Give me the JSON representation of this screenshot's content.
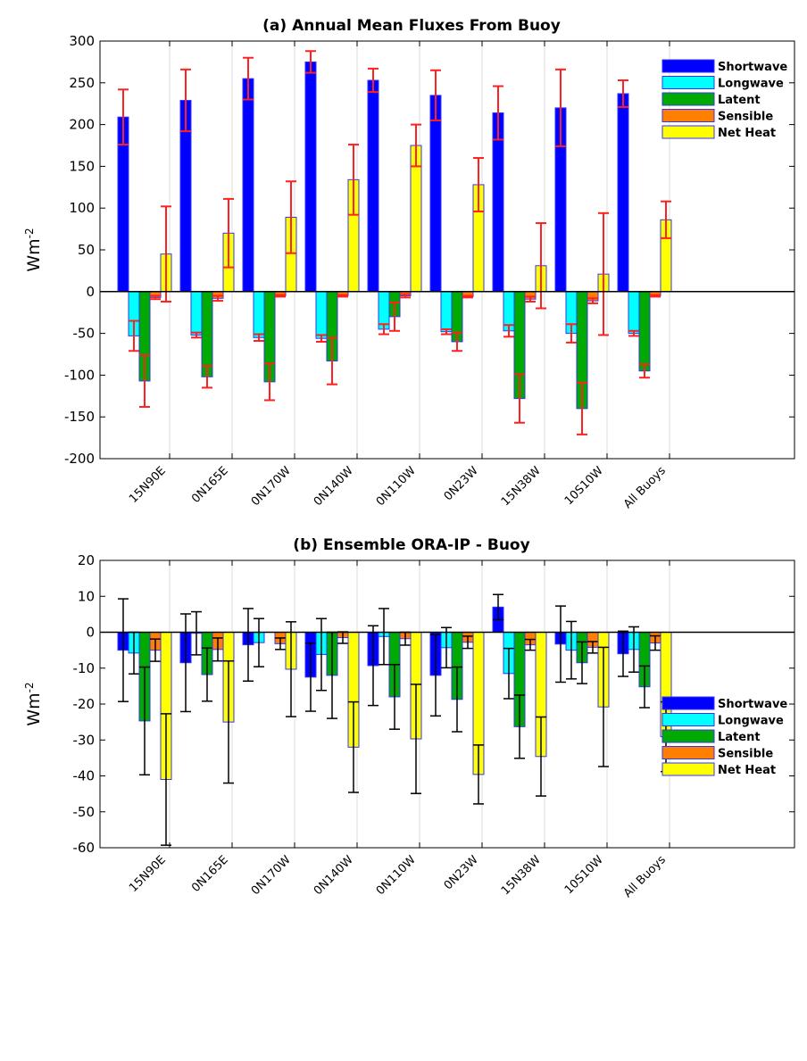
{
  "chart_data": [
    {
      "type": "bar",
      "title": "(a) Annual Mean Fluxes From Buoy",
      "ylabel": "Wm",
      "ylabel_superscript": "-2",
      "ylim": [
        -200,
        300
      ],
      "yticks": [
        -200,
        -150,
        -100,
        -50,
        0,
        50,
        100,
        150,
        200,
        250,
        300
      ],
      "grid": "vertical",
      "legend_position": "top-right",
      "error_bar_color": "#ff2020",
      "categories": [
        "15N90E",
        "0N165E",
        "0N170W",
        "0N140W",
        "0N110W",
        "0N23W",
        "15N38W",
        "10S10W",
        "All Buoys"
      ],
      "series": [
        {
          "name": "Shortwave",
          "color": "#0000ff",
          "values": [
            209,
            229,
            255,
            275,
            253,
            235,
            214,
            220,
            237
          ],
          "errors": [
            33,
            37,
            25,
            13,
            14,
            30,
            32,
            46,
            16
          ]
        },
        {
          "name": "Longwave",
          "color": "#00ffff",
          "values": [
            -53,
            -52,
            -55,
            -56,
            -45,
            -48,
            -47,
            -50,
            -50
          ],
          "errors": [
            18,
            3,
            4,
            4,
            6,
            3,
            7,
            11,
            3
          ]
        },
        {
          "name": "Latent",
          "color": "#00aa00",
          "values": [
            -107,
            -102,
            -108,
            -83,
            -30,
            -60,
            -128,
            -140,
            -95
          ],
          "errors": [
            31,
            13,
            22,
            28,
            17,
            11,
            29,
            31,
            8
          ]
        },
        {
          "name": "Sensible",
          "color": "#ff7f00",
          "values": [
            -7,
            -8,
            -5,
            -5,
            -5,
            -6,
            -9,
            -11,
            -5
          ],
          "errors": [
            2,
            3,
            1,
            1,
            2,
            1,
            3,
            3,
            1
          ]
        },
        {
          "name": "Net Heat",
          "color": "#ffff00",
          "values": [
            45,
            70,
            89,
            134,
            175,
            128,
            31,
            21,
            86
          ],
          "errors": [
            57,
            41,
            43,
            42,
            25,
            32,
            51,
            73,
            22
          ]
        }
      ]
    },
    {
      "type": "bar",
      "title": "(b) Ensemble ORA-IP - Buoy",
      "ylabel": "Wm",
      "ylabel_superscript": "-2",
      "ylim": [
        -60,
        20
      ],
      "yticks": [
        -60,
        -50,
        -40,
        -30,
        -20,
        -10,
        0,
        10,
        20
      ],
      "grid": "vertical",
      "legend_position": "bottom-right",
      "error_bar_color": "#000000",
      "categories": [
        "15N90E",
        "0N165E",
        "0N170W",
        "0N140W",
        "0N110W",
        "0N23W",
        "15N38W",
        "10S10W",
        "All Buoys"
      ],
      "series": [
        {
          "name": "Shortwave",
          "color": "#0000ff",
          "values": [
            -5,
            -8.5,
            -3.5,
            -12.5,
            -9.3,
            -12,
            7,
            -3.3,
            -6
          ],
          "errors": [
            14.3,
            13.6,
            10.1,
            9.5,
            11.1,
            11.3,
            3.5,
            10.6,
            6.3
          ]
        },
        {
          "name": "Longwave",
          "color": "#00ffff",
          "values": [
            -5.8,
            -0.3,
            -2.9,
            -6.2,
            -1.2,
            -4.3,
            -11.5,
            -5,
            -4.8
          ],
          "errors": [
            5.8,
            6,
            6.7,
            10,
            7.8,
            5.6,
            7,
            8,
            6.3
          ]
        },
        {
          "name": "Latent",
          "color": "#00aa00",
          "values": [
            -24.7,
            -11.8,
            0,
            -12,
            -18,
            -18.7,
            -26.3,
            -8.5,
            -15.2
          ],
          "errors": [
            15,
            7.4,
            0,
            12,
            9,
            9,
            8.8,
            5.8,
            5.8
          ]
        },
        {
          "name": "Sensible",
          "color": "#ff7f00",
          "values": [
            -5,
            -4.8,
            -3.2,
            -1.5,
            -1.8,
            -2.8,
            -3.5,
            -4.2,
            -3
          ],
          "errors": [
            3.1,
            3.2,
            1.6,
            1.6,
            1.8,
            1.7,
            1.5,
            1.6,
            2
          ]
        },
        {
          "name": "Net Heat",
          "color": "#ffff00",
          "values": [
            -41,
            -25,
            -10.3,
            -32,
            -29.7,
            -39.6,
            -34.6,
            -20.8,
            -29.1
          ],
          "errors": [
            18.3,
            17,
            13.2,
            12.6,
            15.2,
            8.2,
            11,
            16.6,
            9.7
          ]
        }
      ]
    }
  ]
}
